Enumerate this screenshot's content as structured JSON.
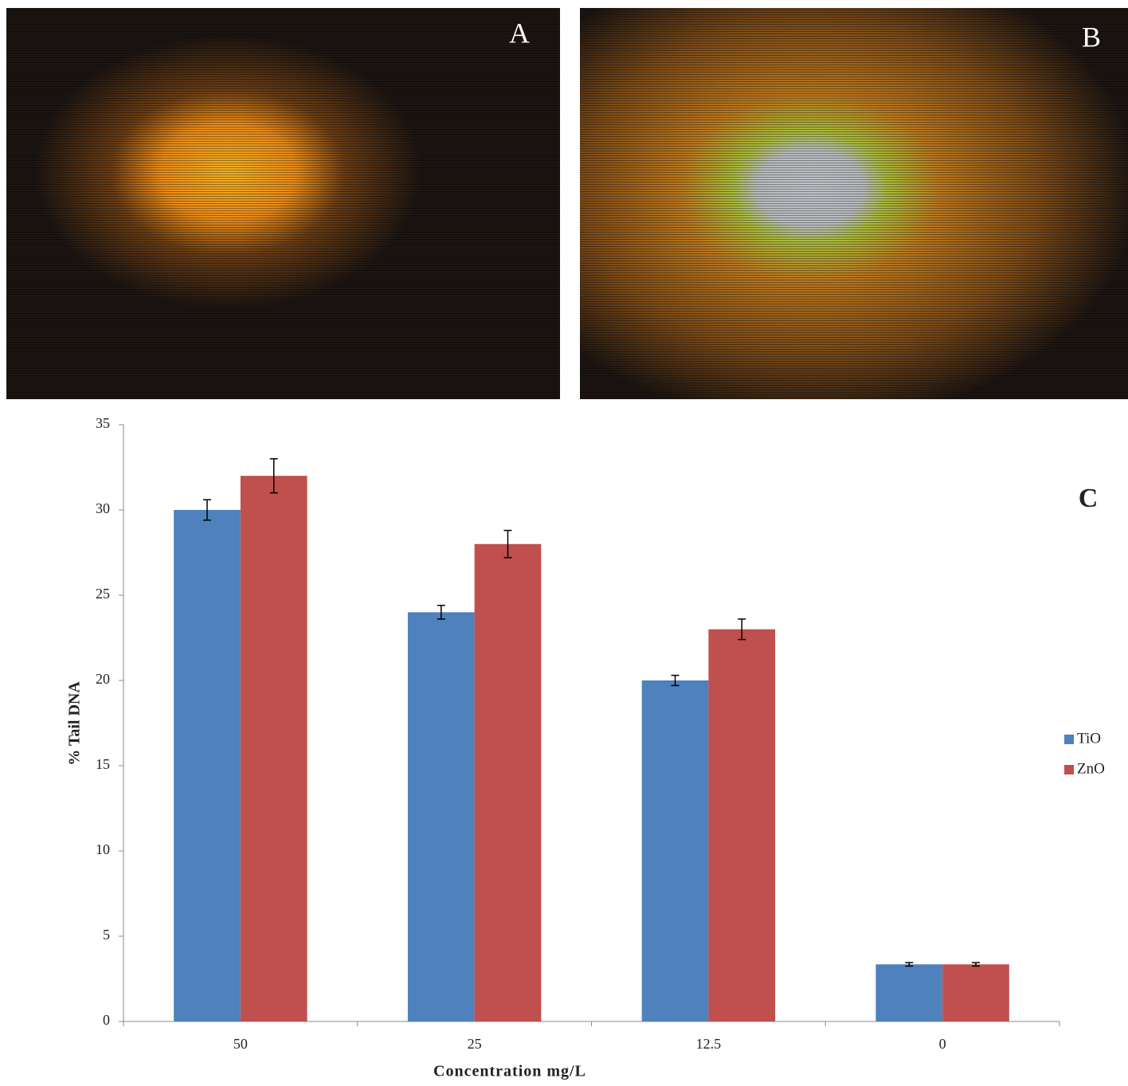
{
  "panels": {
    "image_a_label": "A",
    "image_b_label": "B",
    "chart_label": "C"
  },
  "chart_data": {
    "type": "bar",
    "xlabel": "Concentration mg/L",
    "ylabel": "% Tail DNA",
    "categories": [
      "50",
      "25",
      "12.5",
      "0"
    ],
    "series": [
      {
        "name": "TiO",
        "color": "#4f81bd",
        "values": [
          30,
          24,
          20,
          3.35
        ],
        "errors": [
          0.6,
          0.4,
          0.3,
          0.1
        ]
      },
      {
        "name": "ZnO",
        "color": "#c0504d",
        "values": [
          32,
          28,
          23,
          3.35
        ],
        "errors": [
          1.0,
          0.8,
          0.6,
          0.1
        ]
      }
    ],
    "ylim": [
      0,
      35
    ],
    "yticks": [
      0,
      5,
      10,
      15,
      20,
      25,
      30,
      35
    ],
    "grid": false,
    "legend": "right"
  }
}
